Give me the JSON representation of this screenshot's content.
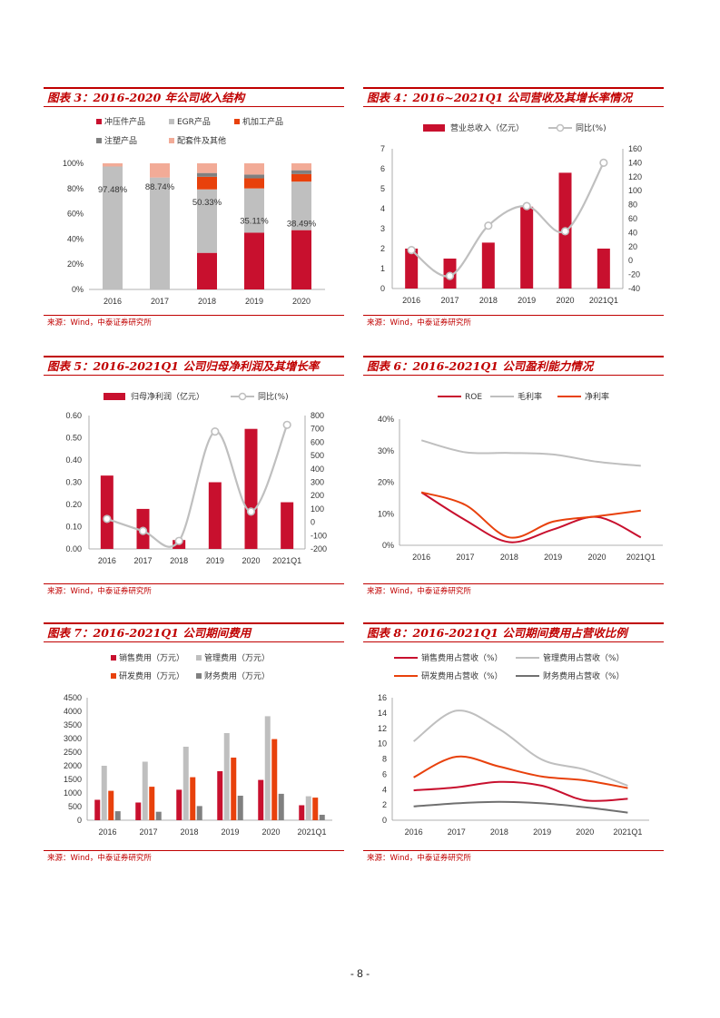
{
  "page": {
    "number": "- 8 -"
  },
  "charts": [
    {
      "key": "c3",
      "title": "图表 3：2016-2020 年公司收入结构",
      "source": "来源：Wind，中泰证券研究所",
      "chart_data": {
        "type": "stacked-bar",
        "categories": [
          "2016",
          "2017",
          "2018",
          "2019",
          "2020"
        ],
        "ylim": [
          0,
          100
        ],
        "yticks": [
          0,
          20,
          40,
          60,
          80,
          100
        ],
        "yticks_text": [
          "0%",
          "20%",
          "40%",
          "60%",
          "80%",
          "100%"
        ],
        "series": [
          {
            "name": "冲压件产品",
            "color": "#c8102e",
            "values": [
              0,
              0,
              29,
              45,
              47
            ]
          },
          {
            "name": "EGR产品",
            "color": "#bfbfbf",
            "values": [
              97.48,
              88.74,
              50.33,
              35.11,
              38.49
            ]
          },
          {
            "name": "机加工产品",
            "color": "#e8410c",
            "values": [
              0,
              0,
              10,
              8,
              6
            ]
          },
          {
            "name": "注塑产品",
            "color": "#808080",
            "values": [
              0,
              0,
              3,
              3,
              3
            ]
          },
          {
            "name": "配套件及其他",
            "color": "#f2ab97",
            "values": [
              2.52,
              11.26,
              7.67,
              8.89,
              5.51
            ]
          }
        ],
        "data_labels": [
          "97.48%",
          "88.74%",
          "50.33%",
          "35.11%",
          "38.49%"
        ]
      }
    },
    {
      "key": "c4",
      "title": "图表 4：2016~2021Q1 公司营收及其增长率情况",
      "source": "来源：Wind，中泰证券研究所",
      "chart_data": {
        "type": "bar-line",
        "categories": [
          "2016",
          "2017",
          "2018",
          "2019",
          "2020",
          "2021Q1"
        ],
        "bar_series": {
          "name": "营业总收入（亿元）",
          "color": "#c8102e",
          "values": [
            2.0,
            1.5,
            2.3,
            4.1,
            5.8,
            2.0
          ]
        },
        "line_series": {
          "name": "同比(%)",
          "color": "#bfbfbf",
          "values": [
            15,
            -22,
            50,
            78,
            42,
            140
          ]
        },
        "ylim_left": [
          0,
          7
        ],
        "yticks_left": [
          0,
          1,
          2,
          3,
          4,
          5,
          6,
          7
        ],
        "ylim_right": [
          -40,
          160
        ],
        "yticks_right": [
          -40,
          -20,
          0,
          20,
          40,
          60,
          80,
          100,
          120,
          140,
          160
        ]
      }
    },
    {
      "key": "c5",
      "title": "图表 5：2016-2021Q1 公司归母净利润及其增长率",
      "source": "来源：Wind，中泰证券研究所",
      "chart_data": {
        "type": "bar-line",
        "categories": [
          "2016",
          "2017",
          "2018",
          "2019",
          "2020",
          "2021Q1"
        ],
        "bar_series": {
          "name": "归母净利润（亿元）",
          "color": "#c8102e",
          "values": [
            0.33,
            0.18,
            0.04,
            0.3,
            0.54,
            0.21
          ]
        },
        "line_series": {
          "name": "同比(%)",
          "color": "#bfbfbf",
          "values": [
            25,
            -65,
            -140,
            680,
            80,
            730
          ]
        },
        "ylim_left": [
          0,
          0.6
        ],
        "yticks_left": [
          0.0,
          0.1,
          0.2,
          0.3,
          0.4,
          0.5,
          0.6
        ],
        "yticks_left_text": [
          "0.00",
          "0.10",
          "0.20",
          "0.30",
          "0.40",
          "0.50",
          "0.60"
        ],
        "ylim_right": [
          -200,
          800
        ],
        "yticks_right": [
          -200,
          -100,
          0,
          100,
          200,
          300,
          400,
          500,
          600,
          700,
          800
        ]
      }
    },
    {
      "key": "c6",
      "title": "图表 6：2016-2021Q1 公司盈利能力情况",
      "source": "来源：Wind，中泰证券研究所",
      "chart_data": {
        "type": "line",
        "categories": [
          "2016",
          "2017",
          "2018",
          "2019",
          "2020",
          "2021Q1"
        ],
        "ylim": [
          0,
          40
        ],
        "yticks": [
          0,
          10,
          20,
          30,
          40
        ],
        "yticks_text": [
          "0%",
          "10%",
          "20%",
          "30%",
          "40%"
        ],
        "series": [
          {
            "name": "ROE",
            "color": "#c8102e",
            "values": [
              16.8,
              8.0,
              1.0,
              5.0,
              9.0,
              2.5
            ]
          },
          {
            "name": "毛利率",
            "color": "#bfbfbf",
            "values": [
              33.3,
              29.5,
              29.3,
              28.8,
              26.5,
              25.2
            ]
          },
          {
            "name": "净利率",
            "color": "#e8410c",
            "values": [
              16.8,
              12.8,
              2.5,
              7.5,
              9.2,
              11.0
            ]
          }
        ]
      }
    },
    {
      "key": "c7",
      "title": "图表 7：2016-2021Q1 公司期间费用",
      "source": "来源：Wind，中泰证券研究所",
      "chart_data": {
        "type": "bar",
        "categories": [
          "2016",
          "2017",
          "2018",
          "2019",
          "2020",
          "2021Q1"
        ],
        "ylim": [
          0,
          4500
        ],
        "yticks": [
          0,
          500,
          1000,
          1500,
          2000,
          2500,
          3000,
          3500,
          4000,
          4500
        ],
        "series": [
          {
            "name": "销售费用（万元）",
            "color": "#c8102e",
            "values": [
              750,
              650,
              1120,
              1800,
              1480,
              550
            ]
          },
          {
            "name": "管理费用（万元）",
            "color": "#bfbfbf",
            "values": [
              2000,
              2150,
              2700,
              3200,
              3820,
              880
            ]
          },
          {
            "name": "研发费用（万元）",
            "color": "#e8410c",
            "values": [
              1080,
              1230,
              1580,
              2300,
              2980,
              830
            ]
          },
          {
            "name": "财务费用（万元）",
            "color": "#808080",
            "values": [
              330,
              310,
              520,
              900,
              970,
              200
            ]
          }
        ]
      }
    },
    {
      "key": "c8",
      "title": "图表 8：2016-2021Q1 公司期间费用占营收比例",
      "source": "来源：Wind，中泰证券研究所",
      "chart_data": {
        "type": "line",
        "categories": [
          "2016",
          "2017",
          "2018",
          "2019",
          "2020",
          "2021Q1"
        ],
        "ylim": [
          0,
          16
        ],
        "yticks": [
          0,
          2,
          4,
          6,
          8,
          10,
          12,
          14,
          16
        ],
        "series": [
          {
            "name": "销售费用占营收（%）",
            "color": "#c8102e",
            "values": [
              3.9,
              4.3,
              5.0,
              4.5,
              2.6,
              2.8
            ]
          },
          {
            "name": "管理费用占营收（%）",
            "color": "#bfbfbf",
            "values": [
              10.3,
              14.3,
              11.9,
              7.9,
              6.6,
              4.5
            ]
          },
          {
            "name": "研发费用占营收（%）",
            "color": "#e8410c",
            "values": [
              5.6,
              8.3,
              7.0,
              5.7,
              5.2,
              4.2
            ]
          },
          {
            "name": "财务费用占营收（%）",
            "color": "#707070",
            "values": [
              1.8,
              2.2,
              2.4,
              2.2,
              1.7,
              1.0
            ]
          }
        ]
      }
    }
  ]
}
